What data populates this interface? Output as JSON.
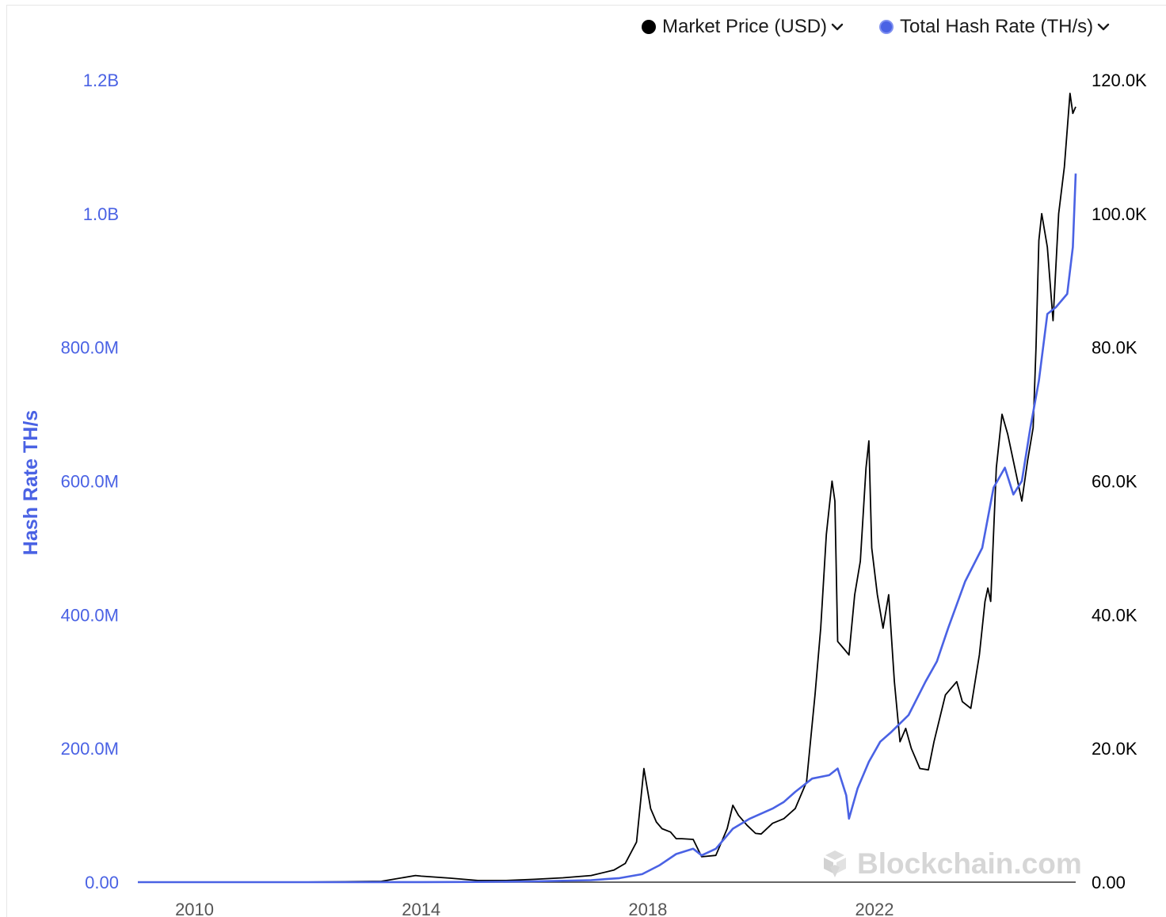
{
  "legend": {
    "price_label": "Market Price (USD)",
    "hash_label": "Total Hash Rate (TH/s)",
    "price_color": "#000000",
    "hash_color": "#4a62e4"
  },
  "watermark": "Blockchain.com",
  "chart_data": {
    "type": "line",
    "title": "",
    "xlabel": "",
    "x_ticks": [
      "2010",
      "2014",
      "2018",
      "2022"
    ],
    "xlim": [
      2009.0,
      2025.55
    ],
    "y_left": {
      "label": "Hash Rate TH/s",
      "ticks": [
        "0.00",
        "200.0M",
        "400.0M",
        "600.0M",
        "800.0M",
        "1.0B",
        "1.2B"
      ],
      "ylim": [
        0,
        1200000000
      ],
      "color": "#4a62e4"
    },
    "y_right": {
      "label": "",
      "ticks": [
        "0.00",
        "20.0K",
        "40.0K",
        "60.0K",
        "80.0K",
        "100.0K",
        "120.0K"
      ],
      "ylim": [
        0,
        120000
      ],
      "color": "#000000"
    },
    "grid": false,
    "legend_position": "top-right",
    "series": [
      {
        "name": "Market Price (USD)",
        "axis": "right",
        "color": "#000000",
        "x": [
          2009.0,
          2010.5,
          2012.0,
          2013.3,
          2013.9,
          2014.0,
          2014.5,
          2015.0,
          2015.5,
          2016.0,
          2016.5,
          2017.0,
          2017.4,
          2017.6,
          2017.8,
          2017.93,
          2017.97,
          2018.05,
          2018.15,
          2018.25,
          2018.4,
          2018.5,
          2018.6,
          2018.8,
          2018.95,
          2019.2,
          2019.4,
          2019.5,
          2019.6,
          2019.75,
          2019.9,
          2020.0,
          2020.2,
          2020.4,
          2020.6,
          2020.8,
          2020.95,
          2021.05,
          2021.15,
          2021.25,
          2021.3,
          2021.35,
          2021.45,
          2021.55,
          2021.65,
          2021.75,
          2021.85,
          2021.9,
          2021.95,
          2022.05,
          2022.15,
          2022.25,
          2022.35,
          2022.45,
          2022.55,
          2022.65,
          2022.8,
          2022.95,
          2023.05,
          2023.25,
          2023.45,
          2023.55,
          2023.7,
          2023.85,
          2023.95,
          2024.0,
          2024.05,
          2024.15,
          2024.25,
          2024.35,
          2024.5,
          2024.6,
          2024.7,
          2024.8,
          2024.85,
          2024.9,
          2024.95,
          2025.05,
          2025.15,
          2025.25,
          2025.35,
          2025.45,
          2025.5,
          2025.55
        ],
        "y": [
          0,
          0,
          10,
          130,
          1000,
          900,
          600,
          250,
          250,
          430,
          650,
          1000,
          1800,
          2800,
          6000,
          17000,
          15000,
          11000,
          9000,
          8000,
          7500,
          6500,
          6500,
          6400,
          3800,
          4000,
          8000,
          11500,
          10000,
          8500,
          7300,
          7200,
          8800,
          9500,
          11000,
          15000,
          28000,
          38000,
          52000,
          60000,
          57000,
          36000,
          35000,
          34000,
          43000,
          48000,
          62000,
          66000,
          50000,
          43000,
          38000,
          43000,
          30000,
          21000,
          23000,
          20000,
          17000,
          16800,
          21000,
          28000,
          30000,
          27000,
          26000,
          34000,
          42000,
          44000,
          42000,
          62000,
          70000,
          67000,
          61000,
          57000,
          63000,
          68000,
          80000,
          96000,
          100000,
          95000,
          84000,
          100000,
          107000,
          118000,
          115000,
          116000
        ]
      },
      {
        "name": "Total Hash Rate (TH/s)",
        "axis": "left",
        "color": "#4a62e4",
        "x": [
          2009.0,
          2012.0,
          2014.0,
          2015.0,
          2016.0,
          2017.0,
          2017.5,
          2017.9,
          2018.2,
          2018.5,
          2018.8,
          2018.95,
          2019.2,
          2019.5,
          2019.8,
          2020.2,
          2020.4,
          2020.6,
          2020.9,
          2021.2,
          2021.35,
          2021.5,
          2021.55,
          2021.7,
          2021.9,
          2022.1,
          2022.3,
          2022.6,
          2022.9,
          2023.1,
          2023.3,
          2023.6,
          2023.9,
          2024.1,
          2024.3,
          2024.45,
          2024.6,
          2024.75,
          2024.9,
          2025.05,
          2025.2,
          2025.3,
          2025.4,
          2025.5,
          2025.55
        ],
        "y": [
          0,
          0,
          100000,
          400000,
          1200000,
          3000000,
          6000000,
          12000000,
          25000000,
          42000000,
          50000000,
          40000000,
          50000000,
          80000000,
          95000000,
          110000000,
          120000000,
          135000000,
          155000000,
          160000000,
          170000000,
          130000000,
          95000000,
          140000000,
          180000000,
          210000000,
          225000000,
          250000000,
          300000000,
          330000000,
          380000000,
          450000000,
          500000000,
          590000000,
          620000000,
          580000000,
          600000000,
          680000000,
          750000000,
          850000000,
          860000000,
          870000000,
          880000000,
          950000000,
          1060000000
        ]
      }
    ]
  }
}
